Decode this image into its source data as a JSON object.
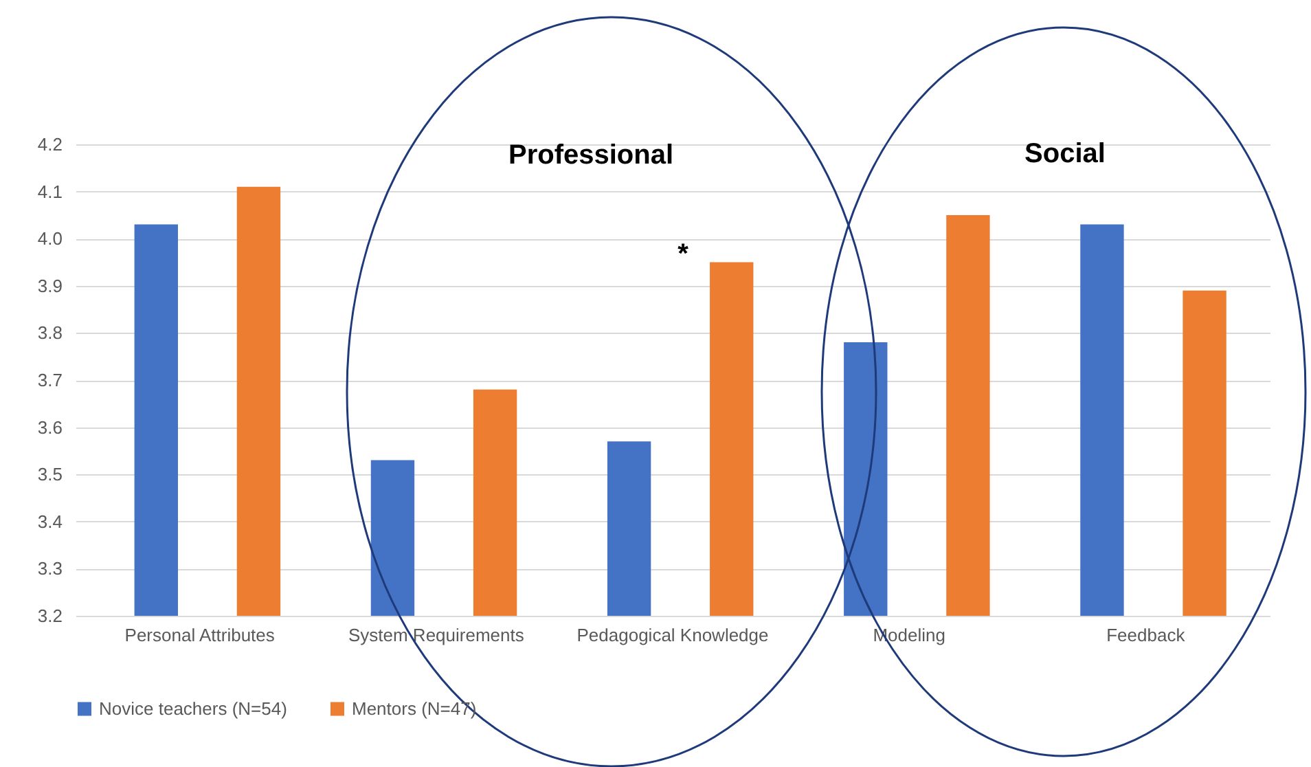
{
  "chart_data": {
    "type": "bar",
    "categories": [
      "Personal Attributes",
      "System Requirements",
      "Pedagogical Knowledge",
      "Modeling",
      "Feedback"
    ],
    "series": [
      {
        "name": "Novice teachers (N=54)",
        "color": "#4472c4",
        "values": [
          4.03,
          3.53,
          3.57,
          3.78,
          4.03
        ]
      },
      {
        "name": "Mentors (N=47)",
        "color": "#ed7d31",
        "values": [
          4.11,
          3.68,
          3.95,
          4.05,
          3.89
        ]
      }
    ],
    "ylim": [
      3.2,
      4.2
    ],
    "yticks": [
      3.2,
      3.3,
      3.4,
      3.5,
      3.6,
      3.7,
      3.8,
      3.9,
      {
        "value": 4,
        "label": "4.0"
      },
      4.1,
      4.2
    ],
    "grid": "y",
    "legend": "bottom",
    "annotations": [
      "Professional",
      "Social",
      "*"
    ]
  }
}
